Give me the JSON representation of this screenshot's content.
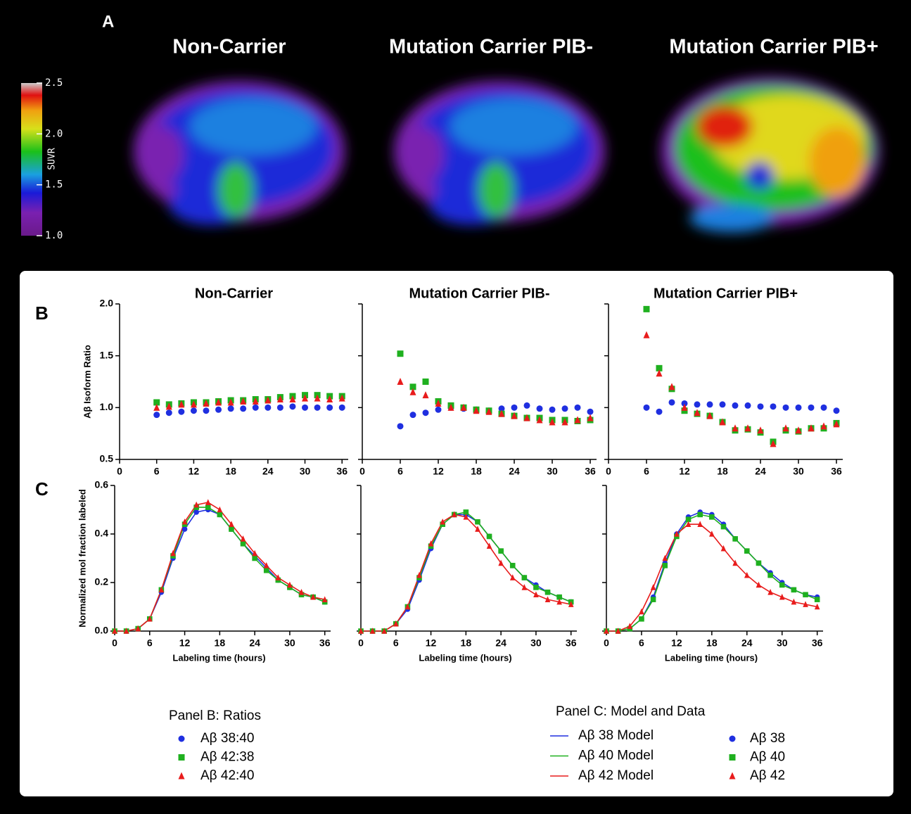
{
  "panel_labels": [
    "A",
    "B",
    "C"
  ],
  "panel_a": {
    "titles": [
      "Non-Carrier",
      "Mutation Carrier PIB-",
      "Mutation Carrier PIB+"
    ],
    "colorbar": {
      "label": "SUVR",
      "lim": [
        1,
        2.5
      ],
      "ticks": [
        2.5,
        {
          "value": 2,
          "label": "2.0"
        },
        1.5,
        {
          "value": 1,
          "label": "1.0"
        }
      ]
    }
  },
  "legends": {
    "b_title": "Panel B: Ratios",
    "c_title": "Panel C: Model and Data"
  },
  "chart_data": [
    {
      "type": "scatter",
      "title": "Non-Carrier",
      "ylabel": "Aβ  Isoform Ratio",
      "xlim": [
        0,
        37
      ],
      "xticks": [
        0,
        6,
        12,
        18,
        24,
        30,
        36
      ],
      "ylim": [
        0.5,
        2
      ],
      "yticks": [
        0.5,
        {
          "value": 1,
          "label": "1.0"
        },
        1.5,
        {
          "value": 2,
          "label": "2.0"
        }
      ],
      "show_ytick_labels": true,
      "x": [
        6,
        8,
        10,
        12,
        14,
        16,
        18,
        20,
        22,
        24,
        26,
        28,
        30,
        32,
        34,
        36
      ],
      "series": [
        {
          "name": "Aβ 38:40",
          "color": "#1f2fe0",
          "marker": "circle",
          "values": [
            0.93,
            0.95,
            0.96,
            0.97,
            0.97,
            0.98,
            0.99,
            0.99,
            1.0,
            1.0,
            1.0,
            1.01,
            1.0,
            1.0,
            1.0,
            1.0
          ]
        },
        {
          "name": "Aβ 42:38",
          "color": "#1fb01f",
          "marker": "square",
          "values": [
            1.05,
            1.03,
            1.04,
            1.05,
            1.05,
            1.06,
            1.07,
            1.07,
            1.08,
            1.08,
            1.1,
            1.11,
            1.12,
            1.12,
            1.11,
            1.11
          ]
        },
        {
          "name": "Aβ 42:40",
          "color": "#e81c1c",
          "marker": "triangle",
          "values": [
            1.0,
            1.01,
            1.03,
            1.03,
            1.04,
            1.05,
            1.05,
            1.06,
            1.06,
            1.07,
            1.08,
            1.08,
            1.09,
            1.09,
            1.08,
            1.09
          ]
        }
      ]
    },
    {
      "type": "scatter",
      "title": "Mutation Carrier PIB-",
      "xlim": [
        0,
        37
      ],
      "xticks": [
        0,
        6,
        12,
        18,
        24,
        30,
        36
      ],
      "ylim": [
        0.5,
        2
      ],
      "yticks": [
        0.5,
        1,
        1.5,
        2
      ],
      "show_ytick_labels": false,
      "x": [
        6,
        8,
        10,
        12,
        14,
        16,
        18,
        20,
        22,
        24,
        26,
        28,
        30,
        32,
        34,
        36
      ],
      "series": [
        {
          "color": "#1f2fe0",
          "marker": "circle",
          "values": [
            0.82,
            0.93,
            0.95,
            0.98,
            1.0,
            0.99,
            0.98,
            0.97,
            0.99,
            1.0,
            1.02,
            0.99,
            0.98,
            0.99,
            1.0,
            0.96
          ]
        },
        {
          "color": "#1fb01f",
          "marker": "square",
          "values": [
            1.52,
            1.2,
            1.25,
            1.06,
            1.02,
            1.0,
            0.98,
            0.97,
            0.94,
            0.92,
            0.9,
            0.9,
            0.88,
            0.88,
            0.87,
            0.88
          ]
        },
        {
          "color": "#e81c1c",
          "marker": "triangle",
          "values": [
            1.25,
            1.15,
            1.12,
            1.04,
            1.0,
            1.0,
            0.97,
            0.96,
            0.94,
            0.92,
            0.9,
            0.88,
            0.86,
            0.86,
            0.88,
            0.9
          ]
        }
      ]
    },
    {
      "type": "scatter",
      "title": "Mutation Carrier PIB+",
      "xlim": [
        0,
        37
      ],
      "xticks": [
        0,
        6,
        12,
        18,
        24,
        30,
        36
      ],
      "ylim": [
        0.5,
        2
      ],
      "yticks": [
        0.5,
        1,
        1.5,
        2
      ],
      "show_ytick_labels": false,
      "x": [
        6,
        8,
        10,
        12,
        14,
        16,
        18,
        20,
        22,
        24,
        26,
        28,
        30,
        32,
        34,
        36
      ],
      "series": [
        {
          "color": "#1f2fe0",
          "marker": "circle",
          "values": [
            1.0,
            0.96,
            1.05,
            1.04,
            1.03,
            1.03,
            1.03,
            1.02,
            1.02,
            1.01,
            1.01,
            1.0,
            1.0,
            1.0,
            1.0,
            0.97
          ]
        },
        {
          "color": "#1fb01f",
          "marker": "square",
          "values": [
            1.95,
            1.38,
            1.18,
            0.97,
            0.94,
            0.92,
            0.86,
            0.78,
            0.79,
            0.76,
            0.67,
            0.78,
            0.77,
            0.8,
            0.8,
            0.85
          ]
        },
        {
          "color": "#e81c1c",
          "marker": "triangle",
          "values": [
            1.7,
            1.33,
            1.2,
            1.0,
            0.95,
            0.92,
            0.86,
            0.8,
            0.8,
            0.78,
            0.65,
            0.8,
            0.78,
            0.8,
            0.82,
            0.84
          ]
        }
      ]
    },
    {
      "type": "line",
      "ylabel": "Normalized mol fraction labeled",
      "xlabel": "Labeling time (hours)",
      "xlim": [
        0,
        37
      ],
      "xticks": [
        0,
        6,
        12,
        18,
        24,
        30,
        36
      ],
      "ylim": [
        0,
        0.6
      ],
      "yticks": [
        {
          "value": 0,
          "label": "0.0"
        },
        0.2,
        0.4,
        0.6
      ],
      "show_ytick_labels": true,
      "x": [
        0,
        2,
        4,
        6,
        8,
        10,
        12,
        14,
        16,
        18,
        20,
        22,
        24,
        26,
        28,
        30,
        32,
        34,
        36
      ],
      "series": [
        {
          "name": "Aβ 38 Model",
          "color": "#1f2fe0",
          "mode": "line",
          "values": [
            0,
            0,
            0.01,
            0.05,
            0.16,
            0.3,
            0.42,
            0.49,
            0.5,
            0.48,
            0.42,
            0.36,
            0.31,
            0.26,
            0.21,
            0.18,
            0.15,
            0.14,
            0.12
          ]
        },
        {
          "name": "Aβ 40 Model",
          "color": "#1fb01f",
          "mode": "line",
          "values": [
            0,
            0,
            0.01,
            0.05,
            0.17,
            0.31,
            0.44,
            0.51,
            0.51,
            0.48,
            0.42,
            0.36,
            0.3,
            0.25,
            0.21,
            0.18,
            0.15,
            0.14,
            0.12
          ]
        },
        {
          "name": "Aβ 42 Model",
          "color": "#e81c1c",
          "mode": "line",
          "values": [
            0,
            0,
            0.01,
            0.05,
            0.17,
            0.32,
            0.45,
            0.52,
            0.53,
            0.5,
            0.44,
            0.38,
            0.32,
            0.27,
            0.22,
            0.19,
            0.16,
            0.14,
            0.13
          ]
        },
        {
          "name": "Aβ 38",
          "color": "#1f2fe0",
          "mode": "markers",
          "marker": "circle",
          "values": [
            0,
            0,
            0.01,
            0.05,
            0.16,
            0.3,
            0.42,
            0.49,
            0.5,
            0.48,
            0.42,
            0.36,
            0.31,
            0.26,
            0.21,
            0.18,
            0.15,
            0.14,
            0.12
          ]
        },
        {
          "name": "Aβ 40",
          "color": "#1fb01f",
          "mode": "markers",
          "marker": "square",
          "values": [
            0,
            0,
            0.01,
            0.05,
            0.17,
            0.31,
            0.44,
            0.51,
            0.51,
            0.48,
            0.42,
            0.36,
            0.3,
            0.25,
            0.21,
            0.18,
            0.15,
            0.14,
            0.12
          ]
        },
        {
          "name": "Aβ 42",
          "color": "#e81c1c",
          "mode": "markers",
          "marker": "triangle",
          "values": [
            0,
            0,
            0.01,
            0.05,
            0.17,
            0.32,
            0.45,
            0.52,
            0.53,
            0.5,
            0.44,
            0.38,
            0.32,
            0.27,
            0.22,
            0.19,
            0.16,
            0.14,
            0.13
          ]
        }
      ]
    },
    {
      "type": "line",
      "xlabel": "Labeling time (hours)",
      "xlim": [
        0,
        37
      ],
      "xticks": [
        0,
        6,
        12,
        18,
        24,
        30,
        36
      ],
      "ylim": [
        0,
        0.6
      ],
      "yticks": [
        0,
        0.2,
        0.4,
        0.6
      ],
      "show_ytick_labels": false,
      "x": [
        0,
        2,
        4,
        6,
        8,
        10,
        12,
        14,
        16,
        18,
        20,
        22,
        24,
        26,
        28,
        30,
        32,
        34,
        36
      ],
      "series": [
        {
          "color": "#1f2fe0",
          "mode": "line",
          "values": [
            0,
            0,
            0,
            0.03,
            0.09,
            0.21,
            0.34,
            0.44,
            0.48,
            0.48,
            0.45,
            0.39,
            0.33,
            0.27,
            0.22,
            0.19,
            0.16,
            0.14,
            0.12
          ]
        },
        {
          "color": "#1fb01f",
          "mode": "line",
          "values": [
            0,
            0,
            0,
            0.03,
            0.1,
            0.22,
            0.35,
            0.44,
            0.48,
            0.49,
            0.45,
            0.39,
            0.33,
            0.27,
            0.22,
            0.18,
            0.16,
            0.14,
            0.12
          ]
        },
        {
          "color": "#e81c1c",
          "mode": "line",
          "values": [
            0,
            0,
            0,
            0.03,
            0.1,
            0.23,
            0.36,
            0.45,
            0.48,
            0.47,
            0.42,
            0.35,
            0.28,
            0.22,
            0.18,
            0.15,
            0.13,
            0.12,
            0.11
          ]
        },
        {
          "color": "#1f2fe0",
          "mode": "markers",
          "marker": "circle",
          "values": [
            0,
            0,
            0,
            0.03,
            0.09,
            0.21,
            0.34,
            0.44,
            0.48,
            0.48,
            0.45,
            0.39,
            0.33,
            0.27,
            0.22,
            0.19,
            0.16,
            0.14,
            0.12
          ]
        },
        {
          "color": "#1fb01f",
          "mode": "markers",
          "marker": "square",
          "values": [
            0,
            0,
            0,
            0.03,
            0.1,
            0.22,
            0.35,
            0.44,
            0.48,
            0.49,
            0.45,
            0.39,
            0.33,
            0.27,
            0.22,
            0.18,
            0.16,
            0.14,
            0.12
          ]
        },
        {
          "color": "#e81c1c",
          "mode": "markers",
          "marker": "triangle",
          "values": [
            0,
            0,
            0,
            0.03,
            0.1,
            0.23,
            0.36,
            0.45,
            0.48,
            0.47,
            0.42,
            0.35,
            0.28,
            0.22,
            0.18,
            0.15,
            0.13,
            0.12,
            0.11
          ]
        }
      ]
    },
    {
      "type": "line",
      "xlabel": "Labeling time (hours)",
      "xlim": [
        0,
        37
      ],
      "xticks": [
        0,
        6,
        12,
        18,
        24,
        30,
        36
      ],
      "ylim": [
        0,
        0.6
      ],
      "yticks": [
        0,
        0.2,
        0.4,
        0.6
      ],
      "show_ytick_labels": false,
      "x": [
        0,
        2,
        4,
        6,
        8,
        10,
        12,
        14,
        16,
        18,
        20,
        22,
        24,
        26,
        28,
        30,
        32,
        34,
        36
      ],
      "series": [
        {
          "color": "#1f2fe0",
          "mode": "line",
          "values": [
            0,
            0,
            0.01,
            0.05,
            0.14,
            0.28,
            0.4,
            0.47,
            0.49,
            0.48,
            0.44,
            0.38,
            0.33,
            0.28,
            0.24,
            0.2,
            0.17,
            0.15,
            0.14
          ]
        },
        {
          "color": "#1fb01f",
          "mode": "line",
          "values": [
            0,
            0,
            0.01,
            0.05,
            0.13,
            0.27,
            0.39,
            0.46,
            0.48,
            0.47,
            0.43,
            0.38,
            0.33,
            0.28,
            0.23,
            0.19,
            0.17,
            0.15,
            0.13
          ]
        },
        {
          "color": "#e81c1c",
          "mode": "line",
          "values": [
            0,
            0,
            0.02,
            0.08,
            0.18,
            0.3,
            0.4,
            0.44,
            0.44,
            0.4,
            0.34,
            0.28,
            0.23,
            0.19,
            0.16,
            0.14,
            0.12,
            0.11,
            0.1
          ]
        },
        {
          "color": "#1f2fe0",
          "mode": "markers",
          "marker": "circle",
          "values": [
            0,
            0,
            0.01,
            0.05,
            0.14,
            0.28,
            0.4,
            0.47,
            0.49,
            0.48,
            0.44,
            0.38,
            0.33,
            0.28,
            0.24,
            0.2,
            0.17,
            0.15,
            0.14
          ]
        },
        {
          "color": "#1fb01f",
          "mode": "markers",
          "marker": "square",
          "values": [
            0,
            0,
            0.01,
            0.05,
            0.13,
            0.27,
            0.39,
            0.46,
            0.48,
            0.47,
            0.43,
            0.38,
            0.33,
            0.28,
            0.23,
            0.19,
            0.17,
            0.15,
            0.13
          ]
        },
        {
          "color": "#e81c1c",
          "mode": "markers",
          "marker": "triangle",
          "values": [
            0,
            0,
            0.02,
            0.08,
            0.18,
            0.3,
            0.4,
            0.44,
            0.44,
            0.4,
            0.34,
            0.28,
            0.23,
            0.19,
            0.16,
            0.14,
            0.12,
            0.11,
            0.1
          ]
        }
      ]
    }
  ]
}
